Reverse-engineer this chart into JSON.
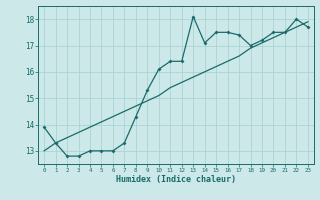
{
  "xlabel": "Humidex (Indice chaleur)",
  "background_color": "#cce8e8",
  "grid_color": "#aad4d4",
  "line_color": "#1a6b6b",
  "x_data": [
    0,
    1,
    2,
    3,
    4,
    5,
    6,
    7,
    8,
    9,
    10,
    11,
    12,
    13,
    14,
    15,
    16,
    17,
    18,
    19,
    20,
    21,
    22,
    23
  ],
  "y_jagged": [
    13.9,
    13.3,
    12.8,
    12.8,
    13.0,
    13.0,
    13.0,
    13.3,
    14.3,
    15.3,
    16.1,
    16.4,
    16.4,
    18.1,
    17.1,
    17.5,
    17.5,
    17.4,
    17.0,
    17.2,
    17.5,
    17.5,
    18.0,
    17.7
  ],
  "y_trend": [
    13.0,
    13.3,
    13.5,
    13.7,
    13.9,
    14.1,
    14.3,
    14.5,
    14.7,
    14.9,
    15.1,
    15.4,
    15.6,
    15.8,
    16.0,
    16.2,
    16.4,
    16.6,
    16.9,
    17.1,
    17.3,
    17.5,
    17.7,
    17.9
  ],
  "ylim": [
    12.5,
    18.5
  ],
  "xlim": [
    -0.5,
    23.5
  ],
  "yticks": [
    13,
    14,
    15,
    16,
    17,
    18
  ],
  "xticks": [
    0,
    1,
    2,
    3,
    4,
    5,
    6,
    7,
    8,
    9,
    10,
    11,
    12,
    13,
    14,
    15,
    16,
    17,
    18,
    19,
    20,
    21,
    22,
    23
  ],
  "xtick_labels": [
    "0",
    "1",
    "2",
    "3",
    "4",
    "5",
    "6",
    "7",
    "8",
    "9",
    "10",
    "11",
    "12",
    "13",
    "14",
    "15",
    "16",
    "17",
    "18",
    "19",
    "20",
    "21",
    "22",
    "23"
  ]
}
